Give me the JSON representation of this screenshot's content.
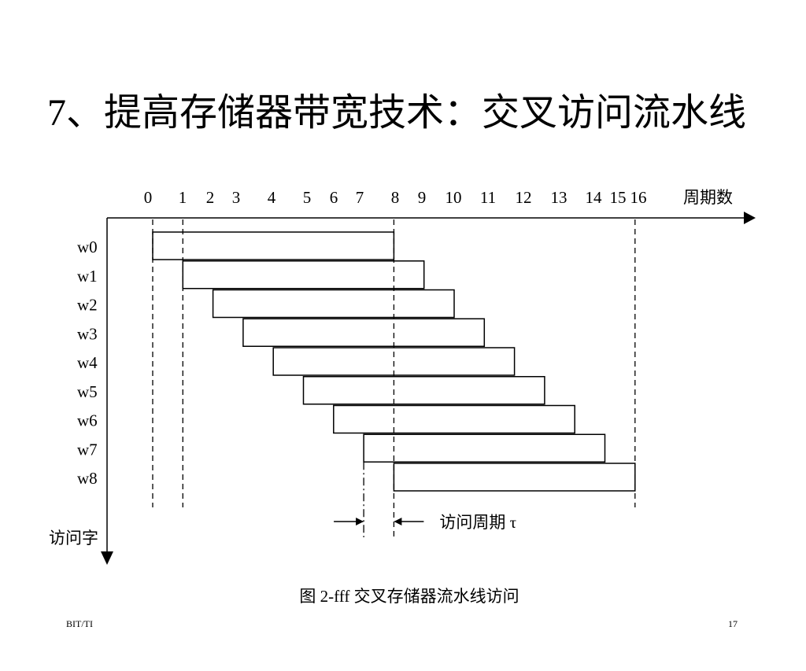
{
  "slide": {
    "title": "7、提高存储器带宽技术：交叉访问流水线",
    "caption": "图 2-fff  交叉存储器流水线访问",
    "footer_left": "BIT/TI",
    "footer_right": "17"
  },
  "diagram": {
    "x_axis_label": "周期数",
    "y_axis_label": "访问字",
    "tick_labels": [
      "0",
      "1",
      "2",
      "3",
      "4",
      "5",
      "6",
      "7",
      "8",
      "9",
      "10",
      "11",
      "12",
      "13",
      "14",
      "15",
      "16"
    ],
    "words": [
      {
        "name": "w0",
        "start": 0,
        "end": 8
      },
      {
        "name": "w1",
        "start": 1,
        "end": 9
      },
      {
        "name": "w2",
        "start": 2,
        "end": 10
      },
      {
        "name": "w3",
        "start": 3,
        "end": 11
      },
      {
        "name": "w4",
        "start": 4,
        "end": 12
      },
      {
        "name": "w5",
        "start": 5,
        "end": 13
      },
      {
        "name": "w6",
        "start": 6,
        "end": 14
      },
      {
        "name": "w7",
        "start": 7,
        "end": 15
      },
      {
        "name": "w8",
        "start": 8,
        "end": 16
      }
    ],
    "dashed_marker_cycles": [
      0,
      1,
      8,
      16
    ],
    "interval_annotation": {
      "label": "访问周期 τ",
      "from_cycle": 7,
      "to_cycle": 8
    },
    "line_color": "#000000"
  }
}
